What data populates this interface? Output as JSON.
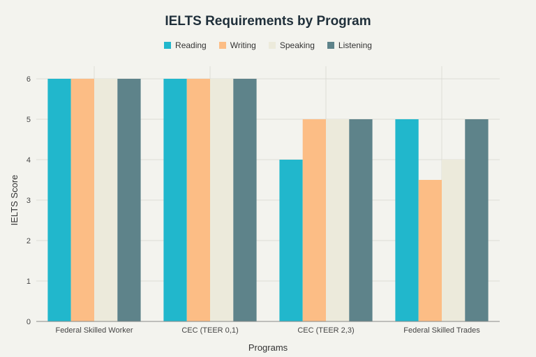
{
  "chart_data": {
    "type": "bar",
    "title": "IELTS Requirements by Program",
    "xlabel": "Programs",
    "ylabel": "IELTS Score",
    "ylim": [
      0,
      6
    ],
    "yticks": [
      "0",
      "1",
      "2",
      "3",
      "4",
      "5",
      "6"
    ],
    "grid": true,
    "legend_position": "top-center",
    "categories": [
      "Federal Skilled Worker",
      "CEC (TEER 0,1)",
      "CEC (TEER 2,3)",
      "Federal Skilled Trades"
    ],
    "series": [
      {
        "name": "Reading",
        "color": "#21b7cc",
        "values": [
          6,
          6,
          4,
          5
        ]
      },
      {
        "name": "Writing",
        "color": "#fcbd85",
        "values": [
          6,
          6,
          5,
          3.5
        ]
      },
      {
        "name": "Speaking",
        "color": "#eceadb",
        "values": [
          6,
          6,
          5,
          4
        ]
      },
      {
        "name": "Listening",
        "color": "#5e838a",
        "values": [
          6,
          6,
          5,
          5
        ]
      }
    ]
  }
}
